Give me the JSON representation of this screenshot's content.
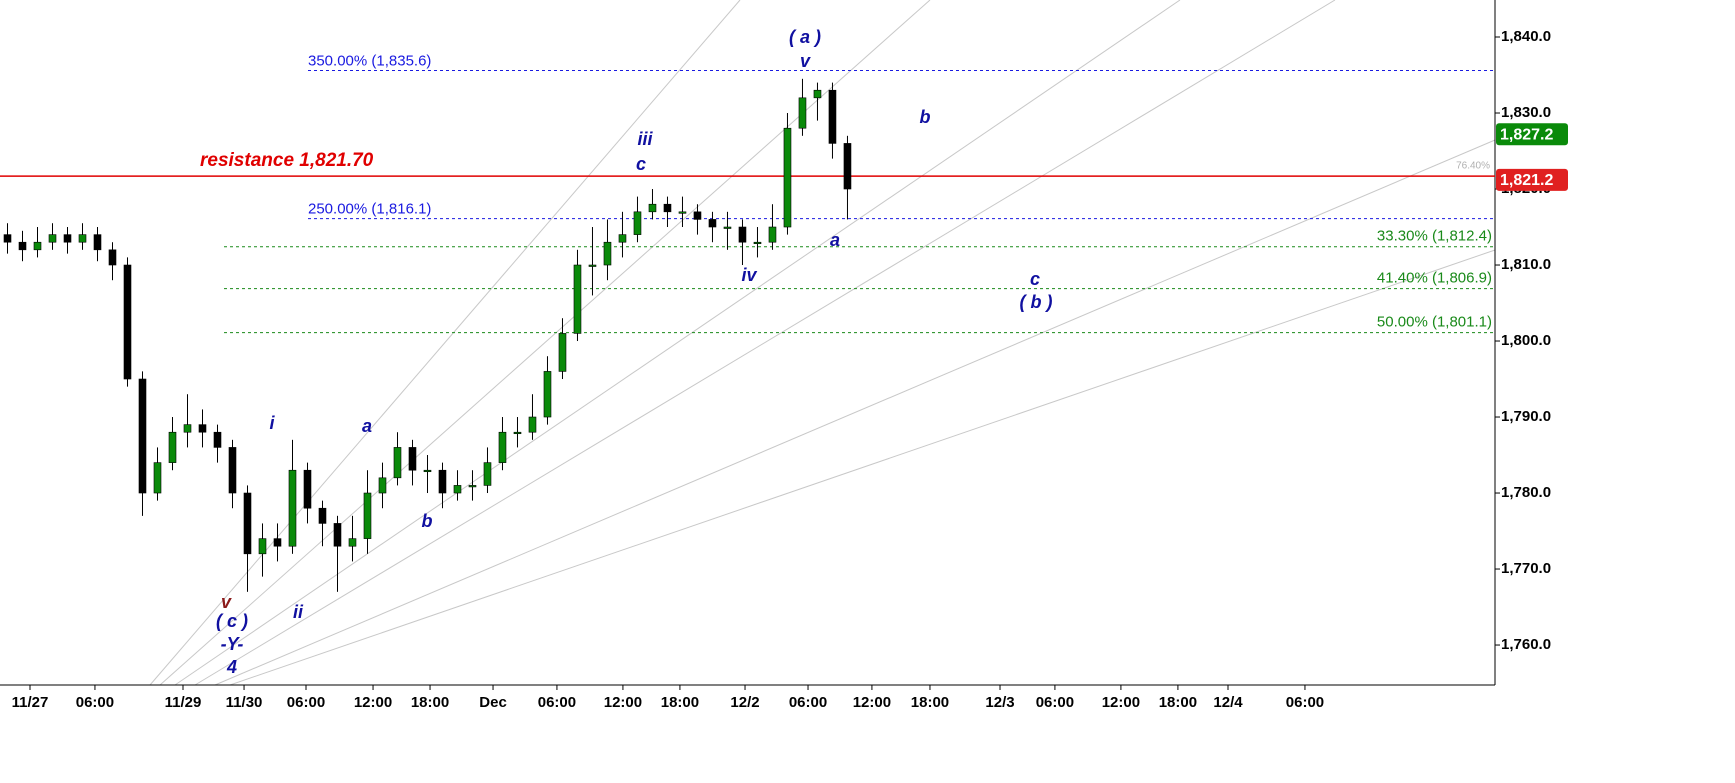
{
  "chart_data": {
    "type": "candlestick",
    "x": [
      0,
      1,
      2,
      3,
      4,
      5,
      6,
      7,
      8,
      9,
      10,
      11,
      12,
      13,
      14,
      15,
      16,
      17,
      18,
      19,
      20,
      21,
      22,
      23,
      24,
      25,
      26,
      27,
      28,
      29,
      30,
      31,
      32,
      33,
      34,
      35,
      36,
      37,
      38,
      39,
      40,
      41,
      42,
      43,
      44,
      45,
      46,
      47,
      48,
      49,
      50,
      51,
      52,
      53,
      54,
      55,
      56
    ],
    "open": [
      1814,
      1813,
      1812,
      1813,
      1814,
      1813,
      1814,
      1812,
      1810,
      1795,
      1780,
      1784,
      1788,
      1789,
      1788,
      1786,
      1780,
      1772,
      1774,
      1773,
      1783,
      1778,
      1776,
      1773,
      1774,
      1780,
      1782,
      1786,
      1783,
      1783,
      1780,
      1781,
      1781,
      1784,
      1788,
      1788,
      1790,
      1796,
      1801,
      1810,
      1810,
      1813,
      1814,
      1817,
      1818,
      1817,
      1817,
      1816,
      1815,
      1815,
      1813,
      1813,
      1815,
      1828,
      1832,
      1833,
      1826
    ],
    "high": [
      1815.5,
      1814.5,
      1815,
      1815.5,
      1815,
      1815.5,
      1815,
      1813,
      1811,
      1796,
      1786,
      1790,
      1793,
      1791,
      1789,
      1787,
      1781,
      1776,
      1776,
      1787,
      1784,
      1779,
      1777,
      1777,
      1783,
      1784,
      1788,
      1787,
      1785,
      1784,
      1783,
      1783,
      1786,
      1790,
      1790,
      1793,
      1798,
      1803,
      1812,
      1815,
      1816,
      1817,
      1819,
      1820,
      1819,
      1819,
      1818,
      1817,
      1817,
      1816,
      1815,
      1818,
      1830,
      1834.5,
      1834,
      1834,
      1827
    ],
    "low": [
      1811.5,
      1810.5,
      1811,
      1812,
      1811.5,
      1812,
      1810.5,
      1808,
      1794,
      1777,
      1779,
      1783,
      1786,
      1786,
      1784,
      1778,
      1767,
      1769,
      1771,
      1772,
      1776,
      1773,
      1767,
      1771,
      1772,
      1778,
      1781,
      1781,
      1780,
      1778,
      1779,
      1779,
      1780,
      1783,
      1786,
      1787,
      1789,
      1795,
      1800,
      1806,
      1808,
      1811,
      1813,
      1816,
      1815,
      1815,
      1814,
      1813,
      1812,
      1810,
      1811,
      1812,
      1814,
      1827,
      1829,
      1824,
      1816
    ],
    "close": [
      1813,
      1812,
      1813,
      1814,
      1813,
      1814,
      1812,
      1810,
      1795,
      1780,
      1784,
      1788,
      1789,
      1788,
      1786,
      1780,
      1772,
      1774,
      1773,
      1783,
      1778,
      1776,
      1773,
      1774,
      1780,
      1782,
      1786,
      1783,
      1783,
      1780,
      1781,
      1781,
      1784,
      1788,
      1788,
      1790,
      1796,
      1801,
      1810,
      1810,
      1813,
      1814,
      1817,
      1818,
      1817,
      1817,
      1816,
      1815,
      1815,
      1813,
      1813,
      1815,
      1828,
      1832,
      1833,
      1826,
      1820
    ],
    "up_color": "#0a8a0a",
    "down_color": "#000000",
    "xlim": [
      -0.5,
      99.17
    ],
    "xticks": [
      {
        "value": 1.5,
        "label": "11/27"
      },
      {
        "value": 5.83,
        "label": "06:00"
      },
      {
        "value": 11.7,
        "label": "11/29"
      },
      {
        "value": 15.77,
        "label": "11/30"
      },
      {
        "value": 19.9,
        "label": "06:00"
      },
      {
        "value": 24.37,
        "label": "12:00"
      },
      {
        "value": 28.17,
        "label": "18:00"
      },
      {
        "value": 32.37,
        "label": "Dec"
      },
      {
        "value": 36.63,
        "label": "06:00"
      },
      {
        "value": 41.03,
        "label": "12:00"
      },
      {
        "value": 44.83,
        "label": "18:00"
      },
      {
        "value": 49.17,
        "label": "12/2"
      },
      {
        "value": 53.37,
        "label": "06:00"
      },
      {
        "value": 57.63,
        "label": "12:00"
      },
      {
        "value": 61.5,
        "label": "18:00"
      },
      {
        "value": 66.17,
        "label": "12/3"
      },
      {
        "value": 69.83,
        "label": "06:00"
      },
      {
        "value": 74.23,
        "label": "12:00"
      },
      {
        "value": 78.03,
        "label": "18:00"
      },
      {
        "value": 81.37,
        "label": "12/4"
      },
      {
        "value": 86.5,
        "label": "06:00"
      }
    ],
    "ylim": [
      1754.74,
      1844.87
    ],
    "yticks": [
      {
        "value": 1760,
        "label": "1,760.0"
      },
      {
        "value": 1770,
        "label": "1,770.0"
      },
      {
        "value": 1780,
        "label": "1,780.0"
      },
      {
        "value": 1790,
        "label": "1,790.0"
      },
      {
        "value": 1800,
        "label": "1,800.0"
      },
      {
        "value": 1810,
        "label": "1,810.0"
      },
      {
        "value": 1820,
        "label": "1,820.0"
      },
      {
        "value": 1830,
        "label": "1,830.0"
      },
      {
        "value": 1840,
        "label": "1,840.0"
      }
    ],
    "hlines": [
      {
        "value": 1821.7,
        "label": "resistance 1,821.70",
        "color": "#e00000",
        "style": "solid"
      },
      {
        "value": 1835.6,
        "label": "350.00% (1,835.6)",
        "color": "#1a1ae0",
        "style": "dotted"
      },
      {
        "value": 1816.1,
        "label": "250.00% (1,816.1)",
        "color": "#1a1ae0",
        "style": "dotted"
      },
      {
        "value": 1812.4,
        "label": "33.30% (1,812.4)",
        "color": "#1a8a1a",
        "style": "dotted"
      },
      {
        "value": 1806.9,
        "label": "41.40% (1,806.9)",
        "color": "#1a8a1a",
        "style": "dotted"
      },
      {
        "value": 1801.1,
        "label": "50.00% (1,801.1)",
        "color": "#1a8a1a",
        "style": "dotted"
      }
    ],
    "fan_note": "76.40%",
    "price_badges": [
      {
        "value": 1827.2,
        "label": "1,827.2",
        "color": "#0a8a0a"
      },
      {
        "value": 1821.2,
        "label": "1,821.2",
        "color": "#e02020"
      }
    ],
    "annotations": [
      {
        "text": "( a )",
        "color": "#1010a0"
      },
      {
        "text": "v",
        "color": "#1010a0"
      },
      {
        "text": "b",
        "color": "#1010a0"
      },
      {
        "text": "iii",
        "color": "#1010a0"
      },
      {
        "text": "c",
        "color": "#1010a0"
      },
      {
        "text": "a",
        "color": "#1010a0"
      },
      {
        "text": "iv",
        "color": "#1010a0"
      },
      {
        "text": "c",
        "color": "#1010a0"
      },
      {
        "text": "( b )",
        "color": "#1010a0"
      },
      {
        "text": "i",
        "color": "#1010a0"
      },
      {
        "text": "a",
        "color": "#1010a0"
      },
      {
        "text": "b",
        "color": "#1010a0"
      },
      {
        "text": "ii",
        "color": "#1010a0"
      },
      {
        "text": "v",
        "color": "#8b1a1a"
      },
      {
        "text": "( c )",
        "color": "#1010a0"
      },
      {
        "text": "-Y-",
        "color": "#1010a0"
      },
      {
        "text": "4",
        "color": "#1010a0"
      }
    ]
  }
}
